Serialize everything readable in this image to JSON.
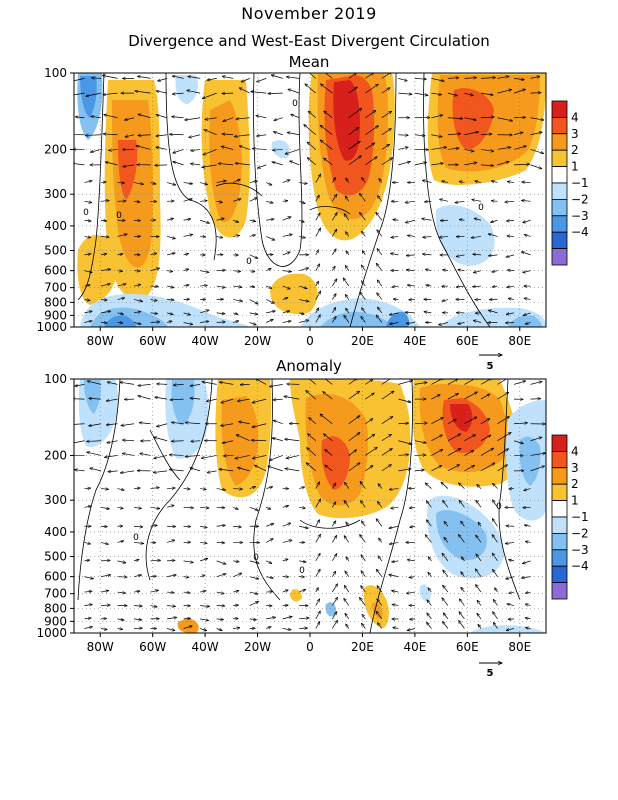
{
  "header": {
    "title": "November 2019",
    "subtitle": "Divergence and West-East Divergent Circulation"
  },
  "chart_data": [
    {
      "type": "heatmap",
      "title": "Mean",
      "x_ticks": [
        "80W",
        "60W",
        "40W",
        "20W",
        "0",
        "20E",
        "40E",
        "60E",
        "80E"
      ],
      "x_tick_values": [
        -80,
        -60,
        -40,
        -20,
        0,
        20,
        40,
        60,
        80
      ],
      "xlim": [
        -90,
        90
      ],
      "y_ticks": [
        "100",
        "200",
        "300",
        "400",
        "500",
        "600",
        "700",
        "800",
        "900",
        "1000"
      ],
      "y_tick_values": [
        100,
        200,
        300,
        400,
        500,
        600,
        700,
        800,
        900,
        1000
      ],
      "ylim": [
        1000,
        100
      ],
      "y_scale": "log",
      "contour_labels": [
        "0",
        "0",
        "0",
        "0",
        "0"
      ],
      "vector_reference": "5",
      "colorbar": {
        "labels": [
          "4",
          "3",
          "2",
          "1",
          "−1",
          "−2",
          "−3",
          "−4"
        ],
        "colors": [
          "#d7201c",
          "#f2561f",
          "#f59a1c",
          "#f8c233",
          "#ffffff",
          "#bfe1fb",
          "#84c1f0",
          "#4a97e6",
          "#2966d6",
          "#8c6bd9"
        ]
      },
      "features": [
        {
          "region": "divergence maximum",
          "lon": [
            5,
            30
          ],
          "p": [
            100,
            300
          ],
          "value": 4
        },
        {
          "region": "divergence",
          "lon": [
            50,
            80
          ],
          "p": [
            100,
            270
          ],
          "value": 3
        },
        {
          "region": "divergence",
          "lon": [
            -75,
            -55
          ],
          "p": [
            100,
            300
          ],
          "value": 3
        },
        {
          "region": "divergence",
          "lon": [
            -40,
            -20
          ],
          "p": [
            100,
            260
          ],
          "value": 2
        },
        {
          "region": "convergence",
          "lon": [
            -80,
            -20
          ],
          "p": [
            800,
            1000
          ],
          "value": -3
        },
        {
          "region": "convergence",
          "lon": [
            10,
            40
          ],
          "p": [
            850,
            1000
          ],
          "value": -3
        }
      ]
    },
    {
      "type": "heatmap",
      "title": "Anomaly",
      "x_ticks": [
        "80W",
        "60W",
        "40W",
        "20W",
        "0",
        "20E",
        "40E",
        "60E",
        "80E"
      ],
      "x_tick_values": [
        -80,
        -60,
        -40,
        -20,
        0,
        20,
        40,
        60,
        80
      ],
      "xlim": [
        -90,
        90
      ],
      "y_ticks": [
        "100",
        "200",
        "300",
        "400",
        "500",
        "600",
        "700",
        "800",
        "900",
        "1000"
      ],
      "y_tick_values": [
        100,
        200,
        300,
        400,
        500,
        600,
        700,
        800,
        900,
        1000
      ],
      "ylim": [
        1000,
        100
      ],
      "y_scale": "log",
      "contour_labels": [
        "0",
        "0",
        "0",
        "0"
      ],
      "vector_reference": "5",
      "colorbar": {
        "labels": [
          "4",
          "3",
          "2",
          "1",
          "−1",
          "−2",
          "−3",
          "−4"
        ],
        "colors": [
          "#d7201c",
          "#f2561f",
          "#f59a1c",
          "#f8c233",
          "#ffffff",
          "#bfe1fb",
          "#84c1f0",
          "#4a97e6",
          "#2966d6",
          "#8c6bd9"
        ]
      },
      "features": [
        {
          "region": "divergence",
          "lon": [
            45,
            75
          ],
          "p": [
            100,
            280
          ],
          "value": 3
        },
        {
          "region": "divergence",
          "lon": [
            0,
            30
          ],
          "p": [
            100,
            330
          ],
          "value": 3
        },
        {
          "region": "divergence",
          "lon": [
            -35,
            -15
          ],
          "p": [
            100,
            280
          ],
          "value": 2
        },
        {
          "region": "convergence",
          "lon": [
            -85,
            -65
          ],
          "p": [
            100,
            160
          ],
          "value": -2
        },
        {
          "region": "convergence",
          "lon": [
            -55,
            -40
          ],
          "p": [
            100,
            180
          ],
          "value": -2
        },
        {
          "region": "convergence",
          "lon": [
            45,
            70
          ],
          "p": [
            350,
            600
          ],
          "value": -2
        },
        {
          "region": "convergence",
          "lon": [
            80,
            90
          ],
          "p": [
            150,
            330
          ],
          "value": -2
        }
      ]
    }
  ]
}
